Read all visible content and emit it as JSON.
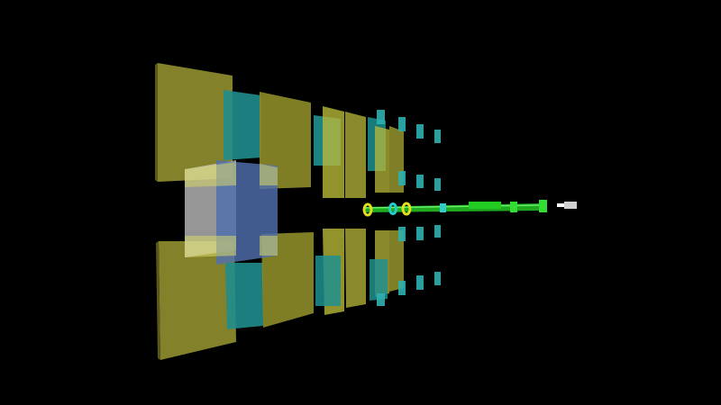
{
  "scene": {
    "subject": "particle-detector-geometry",
    "background_color": "#000000",
    "colors": {
      "olive_panel": "#8a8a2a",
      "olive_panel_face": "#9c9a33",
      "olive_panel_edge": "#6e6c1e",
      "cyan_panel": "#1f8f8f",
      "cyan_panel_bright": "#2fb0b0",
      "yellow_panel": "#c8c840",
      "white_panel": "#d8d8d8",
      "blue_panel": "#5a78b4",
      "beam_green": "#22cc22",
      "beam_highlight": "#88ff88",
      "ring_yellow": "#dddd22",
      "ring_cyan": "#22cccc",
      "source_grey": "#cfcfcf"
    },
    "labels": []
  }
}
